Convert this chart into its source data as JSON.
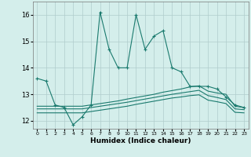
{
  "xlabel": "Humidex (Indice chaleur)",
  "background_color": "#d4eeeb",
  "grid_color": "#b0cccc",
  "line_color": "#1a7a6e",
  "xlim": [
    -0.5,
    23.5
  ],
  "ylim": [
    11.7,
    16.5
  ],
  "yticks": [
    12,
    13,
    14,
    15,
    16
  ],
  "xticks": [
    0,
    1,
    2,
    3,
    4,
    5,
    6,
    7,
    8,
    9,
    10,
    11,
    12,
    13,
    14,
    15,
    16,
    17,
    18,
    19,
    20,
    21,
    22,
    23
  ],
  "series1_x": [
    0,
    1,
    2,
    3,
    4,
    5,
    6,
    7,
    8,
    9,
    10,
    11,
    12,
    13,
    14,
    15,
    16,
    17,
    18,
    19,
    20,
    21,
    22,
    23
  ],
  "series1_y": [
    13.6,
    13.5,
    12.6,
    12.5,
    11.85,
    12.15,
    12.6,
    16.1,
    14.7,
    14.0,
    14.0,
    16.0,
    14.7,
    15.2,
    15.4,
    14.0,
    13.85,
    13.3,
    13.3,
    13.3,
    13.2,
    12.9,
    12.6,
    12.5
  ],
  "series2_x": [
    0,
    1,
    2,
    3,
    4,
    5,
    6,
    7,
    8,
    9,
    10,
    11,
    12,
    13,
    14,
    15,
    16,
    17,
    18,
    19,
    20,
    21,
    22,
    23
  ],
  "series2_y": [
    12.55,
    12.55,
    12.55,
    12.55,
    12.55,
    12.55,
    12.6,
    12.65,
    12.7,
    12.75,
    12.82,
    12.88,
    12.94,
    13.0,
    13.08,
    13.14,
    13.2,
    13.28,
    13.32,
    13.12,
    13.05,
    13.0,
    12.55,
    12.5
  ],
  "series3_x": [
    0,
    1,
    2,
    3,
    4,
    5,
    6,
    7,
    8,
    9,
    10,
    11,
    12,
    13,
    14,
    15,
    16,
    17,
    18,
    19,
    20,
    21,
    22,
    23
  ],
  "series3_y": [
    12.45,
    12.45,
    12.45,
    12.45,
    12.45,
    12.45,
    12.5,
    12.55,
    12.6,
    12.65,
    12.7,
    12.76,
    12.82,
    12.88,
    12.94,
    13.0,
    13.05,
    13.1,
    13.15,
    12.95,
    12.88,
    12.8,
    12.45,
    12.42
  ],
  "series4_x": [
    0,
    1,
    2,
    3,
    4,
    5,
    6,
    7,
    8,
    9,
    10,
    11,
    12,
    13,
    14,
    15,
    16,
    17,
    18,
    19,
    20,
    21,
    22,
    23
  ],
  "series4_y": [
    12.3,
    12.3,
    12.3,
    12.3,
    12.3,
    12.3,
    12.35,
    12.4,
    12.45,
    12.5,
    12.55,
    12.62,
    12.68,
    12.74,
    12.8,
    12.86,
    12.9,
    12.95,
    12.98,
    12.78,
    12.72,
    12.65,
    12.32,
    12.3
  ]
}
